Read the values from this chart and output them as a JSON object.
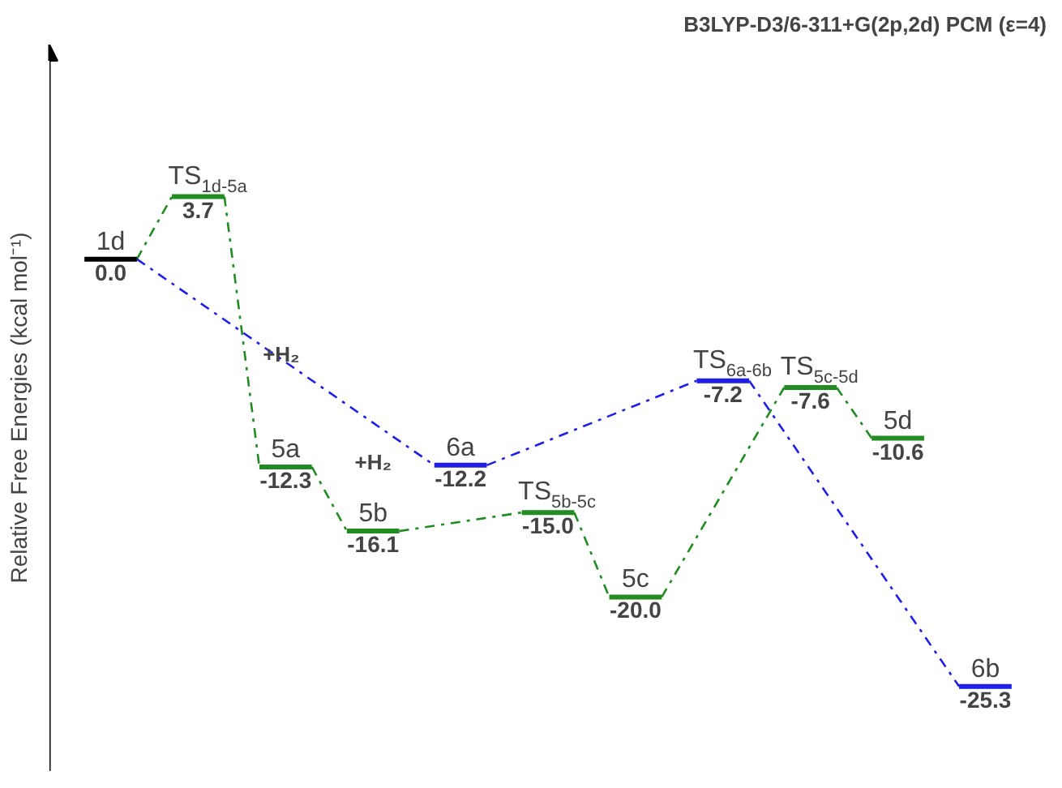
{
  "chart_data": {
    "type": "other",
    "title": "B3LYP-D3/6-311+G(2p,2d) PCM (ε=4)",
    "ylabel": "Relative Free Energies (kcal mol⁻¹)",
    "categories": [
      "1d",
      "TS$_{1d-5a}$",
      "5a",
      "5b",
      "6a",
      "TS$_{5b-5c}$",
      "5c",
      "TS$_{6a-6b}$",
      "TS$_{5c-5d}$",
      "5d",
      "6b"
    ],
    "series": [
      {
        "color": "#228b22",
        "values": [
          null,
          3.7,
          -12.3,
          -16.1,
          null,
          -15.0,
          -20.0,
          null,
          -7.6,
          -10.6,
          null
        ],
        "value_labels": [
          null,
          "3.7",
          "-12.3",
          "-16.1",
          null,
          "-15.0",
          "-20.0",
          null,
          "-7.6",
          "-10.6",
          null
        ]
      },
      {
        "color": "#1f1fe6",
        "values": [
          null,
          null,
          null,
          null,
          -12.2,
          null,
          null,
          -7.2,
          null,
          null,
          -25.3
        ],
        "value_labels": [
          null,
          null,
          null,
          null,
          "-12.2",
          null,
          null,
          "-7.2",
          null,
          null,
          "-25.3"
        ]
      },
      {
        "color": "#000000",
        "values": [
          0.0,
          null,
          null,
          null,
          null,
          null,
          null,
          null,
          null,
          null,
          null
        ],
        "value_labels": [
          "0.0",
          null,
          null,
          null,
          null,
          null,
          null,
          null,
          null,
          null,
          null
        ]
      }
    ],
    "annotations": [
      "+H₂",
      "+H₂"
    ]
  }
}
